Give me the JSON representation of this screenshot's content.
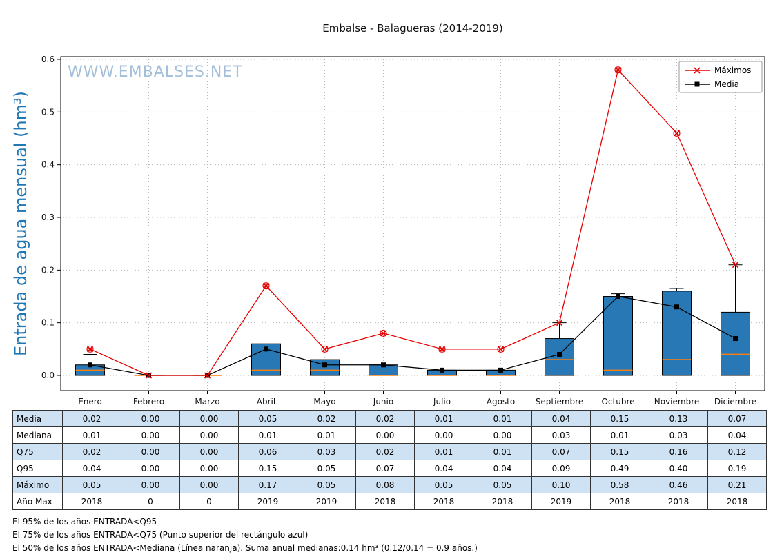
{
  "chart_data": {
    "type": "boxplot_with_lines",
    "title": "Embalse - Balagueras (2014-2019)",
    "watermark": "WWW.EMBALSES.NET",
    "ylabel": "Entrada de agua mensual (hm³)",
    "ylim": [
      0,
      0.6
    ],
    "yticks": [
      "0.0",
      "0.1",
      "0.2",
      "0.3",
      "0.4",
      "0.5",
      "0.6"
    ],
    "grid": true,
    "categories": [
      "Enero",
      "Febrero",
      "Marzo",
      "Abril",
      "Mayo",
      "Junio",
      "Julio",
      "Agosto",
      "Septiembre",
      "Octubre",
      "Noviembre",
      "Diciembre"
    ],
    "legend": {
      "position": "top-right",
      "entries": [
        {
          "label": "Máximos",
          "marker": "x",
          "color": "#e60000"
        },
        {
          "label": "Media",
          "marker": "square",
          "color": "#000000"
        }
      ]
    },
    "series": [
      {
        "name": "Máximos",
        "type": "line",
        "marker": "x",
        "color": "#e60000",
        "values": [
          0.05,
          0.0,
          0.0,
          0.17,
          0.05,
          0.08,
          0.05,
          0.05,
          0.1,
          0.58,
          0.46,
          0.21
        ]
      },
      {
        "name": "Media",
        "type": "line",
        "marker": "square",
        "color": "#000000",
        "values": [
          0.02,
          0.0,
          0.0,
          0.05,
          0.02,
          0.02,
          0.01,
          0.01,
          0.04,
          0.15,
          0.13,
          0.07
        ]
      }
    ],
    "boxes": {
      "fill": "#2878b5",
      "edge": "#000000",
      "median_color": "#ff7f0e",
      "q25": [
        0,
        0,
        0,
        0,
        0,
        0,
        0,
        0,
        0,
        0,
        0,
        0
      ],
      "q75": [
        0.02,
        0.0,
        0.0,
        0.06,
        0.03,
        0.02,
        0.01,
        0.01,
        0.07,
        0.15,
        0.16,
        0.12
      ],
      "median": [
        0.01,
        0.0,
        0.0,
        0.01,
        0.01,
        0.0,
        0.0,
        0.0,
        0.03,
        0.01,
        0.03,
        0.04
      ],
      "whisker_top": [
        0.04,
        0.0,
        0.0,
        0.06,
        0.03,
        0.02,
        0.01,
        0.01,
        0.1,
        0.155,
        0.165,
        0.21
      ],
      "fliers": [
        0.05,
        null,
        null,
        0.17,
        0.05,
        0.08,
        0.05,
        0.05,
        null,
        0.58,
        0.46,
        null
      ]
    }
  },
  "table": {
    "row_labels": [
      "Media",
      "Mediana",
      "Q75",
      "Q95",
      "Máximo",
      "Año Max"
    ],
    "columns": [
      "Enero",
      "Febrero",
      "Marzo",
      "Abril",
      "Mayo",
      "Junio",
      "Julio",
      "Agosto",
      "Septiembre",
      "Octubre",
      "Noviembre",
      "Diciembre"
    ],
    "rows": [
      [
        "0.02",
        "0.00",
        "0.00",
        "0.05",
        "0.02",
        "0.02",
        "0.01",
        "0.01",
        "0.04",
        "0.15",
        "0.13",
        "0.07"
      ],
      [
        "0.01",
        "0.00",
        "0.00",
        "0.01",
        "0.01",
        "0.00",
        "0.00",
        "0.00",
        "0.03",
        "0.01",
        "0.03",
        "0.04"
      ],
      [
        "0.02",
        "0.00",
        "0.00",
        "0.06",
        "0.03",
        "0.02",
        "0.01",
        "0.01",
        "0.07",
        "0.15",
        "0.16",
        "0.12"
      ],
      [
        "0.04",
        "0.00",
        "0.00",
        "0.15",
        "0.05",
        "0.07",
        "0.04",
        "0.04",
        "0.09",
        "0.49",
        "0.40",
        "0.19"
      ],
      [
        "0.05",
        "0.00",
        "0.00",
        "0.17",
        "0.05",
        "0.08",
        "0.05",
        "0.05",
        "0.10",
        "0.58",
        "0.46",
        "0.21"
      ],
      [
        "2018",
        "0",
        "0",
        "2019",
        "2019",
        "2018",
        "2018",
        "2018",
        "2019",
        "2018",
        "2018",
        "2018"
      ]
    ]
  },
  "footnotes": [
    "El 95% de los años ENTRADA<Q95",
    "El 75% de los años ENTRADA<Q75 (Punto superior del rectángulo azul)",
    "El 50% de los años ENTRADA<Mediana (Línea naranja). Suma anual medianas:0.14 hm³ (0.12/0.14 = 0.9 años.)"
  ],
  "colors": {
    "box_fill": "#2878b5",
    "box_edge": "#000000",
    "median": "#ff7f0e",
    "maximos": "#e60000",
    "media": "#000000",
    "watermark": "#a3bfd9",
    "ylabel": "#1f77b4",
    "grid": "#b8b8b8",
    "axis": "#000000",
    "table_alt_row": "#cfe2f3",
    "legend_border": "#9a9a9a"
  }
}
